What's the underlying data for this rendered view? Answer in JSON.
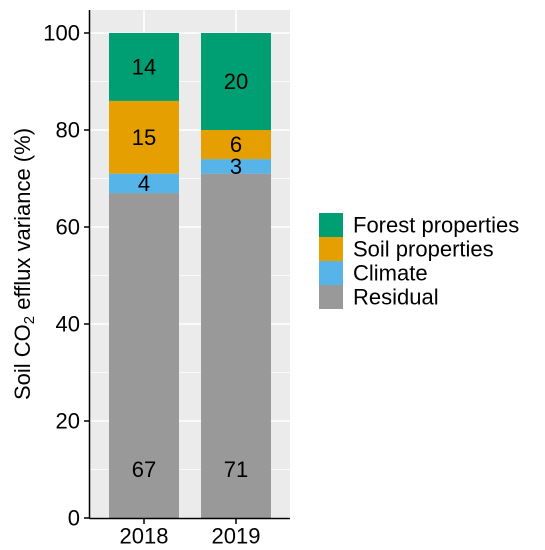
{
  "chart_data": {
    "type": "bar",
    "stacked": true,
    "categories": [
      "2018",
      "2019"
    ],
    "series": [
      {
        "name": "Residual",
        "color": "#999999",
        "values": [
          67,
          71
        ],
        "labels": [
          "67",
          "71"
        ]
      },
      {
        "name": "Climate",
        "color": "#56B4E9",
        "values": [
          4,
          3
        ],
        "labels": [
          "4",
          "3"
        ]
      },
      {
        "name": "Soil properties",
        "color": "#E69F00",
        "values": [
          15,
          6
        ],
        "labels": [
          "15",
          "6"
        ]
      },
      {
        "name": "Forest properties",
        "color": "#009E73",
        "values": [
          14,
          20
        ],
        "labels": [
          "14",
          "20"
        ]
      }
    ],
    "legend_order": [
      "Forest properties",
      "Soil properties",
      "Climate",
      "Residual"
    ],
    "ylabel_prefix": "Soil CO",
    "ylabel_sub": "2",
    "ylabel_suffix": " efflux variance (%)",
    "ylim": [
      0,
      100
    ],
    "yticks": [
      0,
      20,
      40,
      60,
      80,
      100
    ],
    "ytick_labels": [
      "0",
      "20",
      "40",
      "60",
      "80",
      "100"
    ],
    "legend_position": "right",
    "grid": true,
    "panel_background": "#EBEBEB",
    "grid_color": "#FFFFFF"
  }
}
